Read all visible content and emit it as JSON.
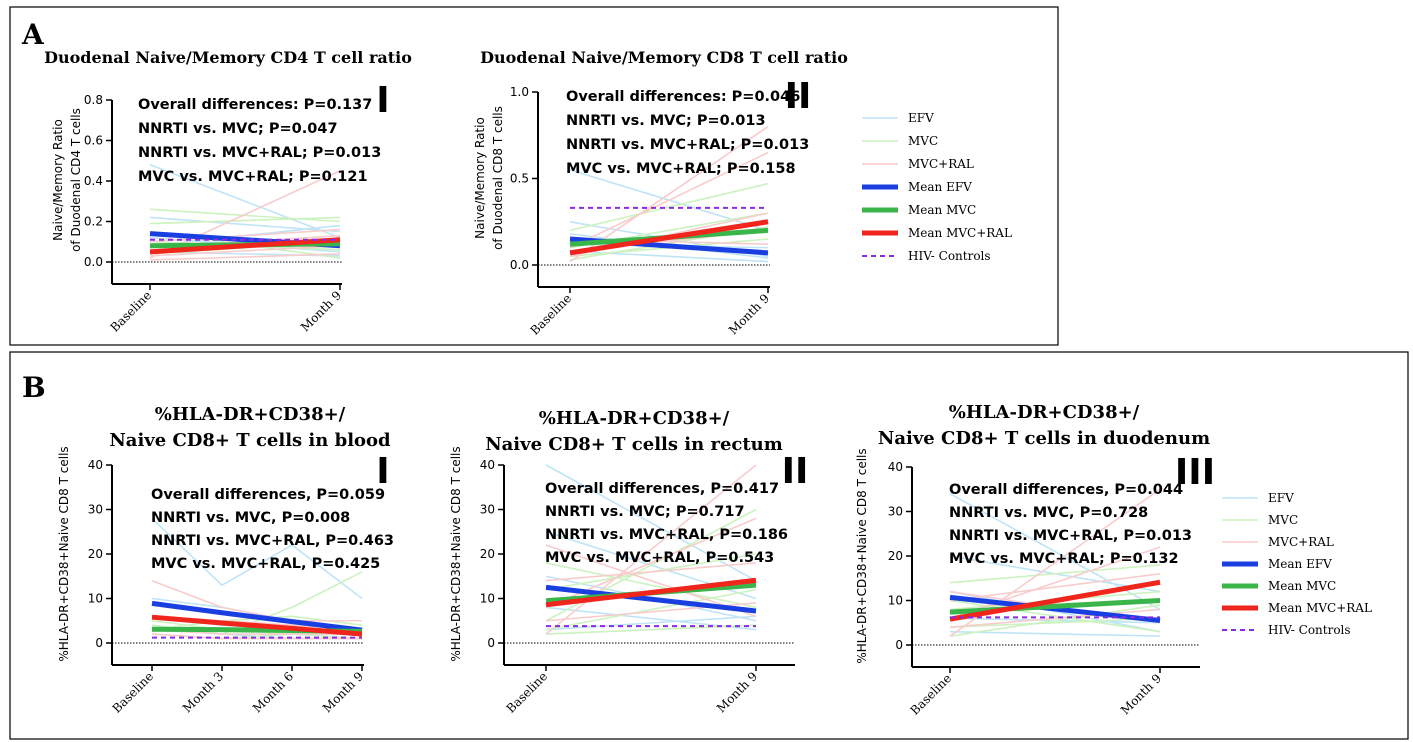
{
  "figure": {
    "panel_a_label": "A",
    "panel_b_label": "B"
  },
  "legend": [
    {
      "name": "EFV",
      "color": "#bfe4f6",
      "kind": "thin"
    },
    {
      "name": "MVC",
      "color": "#ccf2bf",
      "kind": "thin"
    },
    {
      "name": "MVC+RAL",
      "color": "#f8cccc",
      "kind": "thin"
    },
    {
      "name": "Mean EFV",
      "color": "#1a3fe0",
      "kind": "thick"
    },
    {
      "name": "Mean MVC",
      "color": "#39b54a",
      "kind": "thick"
    },
    {
      "name": "Mean MVC+RAL",
      "color": "#f0251c",
      "kind": "thick"
    },
    {
      "name": "HIV- Controls",
      "color": "#8a2be2",
      "kind": "dashed"
    }
  ],
  "chart_data": [
    {
      "id": "A-I",
      "type": "line",
      "title": [
        "Duodenal Naive/Memory CD4 T cell ratio"
      ],
      "roman": "I",
      "ylabel": [
        "Naive/Memory Ratio",
        "of Duodenal CD4 T cells"
      ],
      "ylim": [
        0,
        0.8
      ],
      "yticks": [
        0.0,
        0.2,
        0.4,
        0.6,
        0.8
      ],
      "ytick_labels": [
        "0.0",
        "0.2",
        "0.4",
        "0.6",
        "0.8"
      ],
      "categories": [
        "Baseline",
        "Month 9"
      ],
      "stats": [
        "Overall differences: P=0.137",
        "NNRTI vs. MVC; P=0.047",
        "NNRTI vs. MVC+RAL; P=0.013",
        "MVC vs. MVC+RAL; P=0.121"
      ],
      "individuals": {
        "EFV": [
          [
            0.48,
            0.12
          ],
          [
            0.22,
            0.15
          ],
          [
            0.12,
            0.05
          ],
          [
            0.08,
            0.18
          ],
          [
            0.05,
            0.03
          ]
        ],
        "MVC": [
          [
            0.26,
            0.2
          ],
          [
            0.19,
            0.22
          ],
          [
            0.1,
            0.06
          ],
          [
            0.04,
            0.1
          ],
          [
            0.15,
            0.02
          ]
        ],
        "MVC+RAL": [
          [
            0.02,
            0.45
          ],
          [
            0.07,
            0.13
          ],
          [
            0.03,
            0.08
          ],
          [
            0.1,
            0.16
          ],
          [
            0.01,
            0.04
          ]
        ]
      },
      "series": [
        {
          "name": "Mean EFV",
          "values": [
            0.14,
            0.08
          ]
        },
        {
          "name": "Mean MVC",
          "values": [
            0.08,
            0.09
          ]
        },
        {
          "name": "Mean MVC+RAL",
          "values": [
            0.05,
            0.11
          ]
        },
        {
          "name": "HIV- Controls",
          "values": [
            0.11,
            0.11
          ]
        }
      ]
    },
    {
      "id": "A-II",
      "type": "line",
      "title": [
        "Duodenal Naive/Memory CD8 T cell ratio"
      ],
      "roman": "II",
      "ylabel": [
        "Naive/Memory Ratio",
        "of Duodenal CD8 T cells"
      ],
      "ylim": [
        0,
        1.0
      ],
      "yticks": [
        0.0,
        0.5,
        1.0
      ],
      "ytick_labels": [
        "0.0",
        "0.5",
        "1.0"
      ],
      "categories": [
        "Baseline",
        "Month 9"
      ],
      "stats": [
        "Overall differences: P=0.046",
        "NNRTI vs. MVC; P=0.013",
        "NNRTI vs. MVC+RAL; P=0.013",
        "MVC vs. MVC+RAL; P=0.158"
      ],
      "individuals": {
        "EFV": [
          [
            0.55,
            0.2
          ],
          [
            0.25,
            0.05
          ],
          [
            0.12,
            0.1
          ],
          [
            0.08,
            0.02
          ],
          [
            0.18,
            0.04
          ]
        ],
        "MVC": [
          [
            0.2,
            0.47
          ],
          [
            0.1,
            0.3
          ],
          [
            0.05,
            0.15
          ],
          [
            0.15,
            0.08
          ],
          [
            0.03,
            0.22
          ]
        ],
        "MVC+RAL": [
          [
            0.02,
            0.8
          ],
          [
            0.1,
            0.65
          ],
          [
            0.05,
            0.3
          ],
          [
            0.15,
            0.12
          ],
          [
            0.08,
            0.2
          ]
        ]
      },
      "series": [
        {
          "name": "Mean EFV",
          "values": [
            0.15,
            0.07
          ]
        },
        {
          "name": "Mean MVC",
          "values": [
            0.12,
            0.2
          ]
        },
        {
          "name": "Mean MVC+RAL",
          "values": [
            0.07,
            0.25
          ]
        },
        {
          "name": "HIV- Controls",
          "values": [
            0.33,
            0.33
          ]
        }
      ]
    },
    {
      "id": "B-I",
      "type": "line",
      "title": [
        "%HLA-DR+CD38+/",
        "Naive CD8+ T cells in blood"
      ],
      "roman": "I",
      "ylabel": [
        "%HLA-DR+CD38+Naive CD8 T cells"
      ],
      "ylim": [
        0,
        40
      ],
      "yticks": [
        0,
        10,
        20,
        30,
        40
      ],
      "ytick_labels": [
        "0",
        "10",
        "20",
        "30",
        "40"
      ],
      "categories": [
        "Baseline",
        "Month 3",
        "Month 6",
        "Month 9"
      ],
      "stats": [
        "Overall differences, P=0.059",
        "NNRTI vs. MVC, P=0.008",
        "NNRTI vs. MVC+RAL, P=0.463",
        "MVC vs. MVC+RAL, P=0.425"
      ],
      "individuals": {
        "EFV": [
          [
            28,
            13,
            22,
            10
          ],
          [
            10,
            8,
            5,
            3
          ],
          [
            6,
            4,
            3,
            2
          ],
          [
            4,
            2,
            1,
            1
          ]
        ],
        "MVC": [
          [
            4,
            2,
            8,
            16
          ],
          [
            3,
            5,
            6,
            4
          ],
          [
            2,
            1,
            2,
            2
          ],
          [
            5,
            3,
            2,
            1
          ]
        ],
        "MVC+RAL": [
          [
            14,
            8,
            5,
            5
          ],
          [
            6,
            5,
            4,
            3
          ],
          [
            3,
            2,
            2,
            2
          ],
          [
            2,
            1,
            1,
            1
          ]
        ]
      },
      "series": [
        {
          "name": "Mean EFV",
          "values": [
            8.9,
            6.8,
            4.8,
            2.9
          ]
        },
        {
          "name": "Mean MVC",
          "values": [
            3.1,
            3.0,
            2.8,
            2.6
          ]
        },
        {
          "name": "Mean MVC+RAL",
          "values": [
            5.8,
            4.5,
            3.3,
            2.0
          ]
        },
        {
          "name": "HIV- Controls",
          "values": [
            1.2,
            1.2,
            1.2,
            1.2
          ]
        }
      ]
    },
    {
      "id": "B-II",
      "type": "line",
      "title": [
        "%HLA-DR+CD38+/",
        "Naive CD8+ T cells in rectum"
      ],
      "roman": "II",
      "ylabel": [
        "%HLA-DR+CD38+Naive CD8 T cells"
      ],
      "ylim": [
        0,
        40
      ],
      "yticks": [
        0,
        10,
        20,
        30,
        40
      ],
      "ytick_labels": [
        "0",
        "10",
        "20",
        "30",
        "40"
      ],
      "categories": [
        "Baseline",
        "Month 9"
      ],
      "stats": [
        "Overall differences, P=0.417",
        "NNRTI vs. MVC; P=0.717",
        "NNRTI vs. MVC+RAL, P=0.186",
        "MVC vs. MVC+RAL, P=0.543"
      ],
      "individuals": {
        "EFV": [
          [
            40,
            14
          ],
          [
            25,
            10
          ],
          [
            15,
            5
          ],
          [
            8,
            3
          ],
          [
            3,
            6
          ]
        ],
        "MVC": [
          [
            5,
            30
          ],
          [
            12,
            20
          ],
          [
            3,
            12
          ],
          [
            18,
            8
          ],
          [
            2,
            4
          ]
        ],
        "MVC+RAL": [
          [
            2,
            40
          ],
          [
            8,
            28
          ],
          [
            14,
            18
          ],
          [
            5,
            9
          ],
          [
            22,
            6
          ]
        ]
      },
      "series": [
        {
          "name": "Mean EFV",
          "values": [
            12.5,
            7.2
          ]
        },
        {
          "name": "Mean MVC",
          "values": [
            9.5,
            13.0
          ]
        },
        {
          "name": "Mean MVC+RAL",
          "values": [
            8.6,
            14.1
          ]
        },
        {
          "name": "HIV- Controls",
          "values": [
            3.8,
            3.8
          ]
        }
      ]
    },
    {
      "id": "B-III",
      "type": "line",
      "title": [
        "%HLA-DR+CD38+/",
        "Naive CD8+ T cells in duodenum"
      ],
      "roman": "III",
      "ylabel": [
        "%HLA-DR+CD38+Naive CD8 T cells"
      ],
      "ylim": [
        0,
        40
      ],
      "yticks": [
        0,
        10,
        20,
        30,
        40
      ],
      "ytick_labels": [
        "0",
        "10",
        "20",
        "30",
        "40"
      ],
      "categories": [
        "Baseline",
        "Month 9"
      ],
      "stats": [
        "Overall differences, P=0.044",
        "NNRTI vs. MVC, P=0.728",
        "NNRTI vs. MVC+RAL, P=0.013",
        "MVC vs. MVC+RAL; P=0.132"
      ],
      "individuals": {
        "EFV": [
          [
            34,
            8
          ],
          [
            20,
            12
          ],
          [
            12,
            3
          ],
          [
            6,
            5
          ],
          [
            3,
            2
          ]
        ],
        "MVC": [
          [
            14,
            18
          ],
          [
            8,
            12
          ],
          [
            4,
            6
          ],
          [
            10,
            3
          ],
          [
            2,
            9
          ]
        ],
        "MVC+RAL": [
          [
            2,
            35
          ],
          [
            6,
            22
          ],
          [
            10,
            16
          ],
          [
            4,
            8
          ],
          [
            12,
            5
          ]
        ]
      },
      "series": [
        {
          "name": "Mean EFV",
          "values": [
            10.7,
            5.5
          ]
        },
        {
          "name": "Mean MVC",
          "values": [
            7.4,
            10.0
          ]
        },
        {
          "name": "Mean MVC+RAL",
          "values": [
            5.8,
            14.1
          ]
        },
        {
          "name": "HIV- Controls",
          "values": [
            6.2,
            6.2
          ]
        }
      ]
    }
  ]
}
